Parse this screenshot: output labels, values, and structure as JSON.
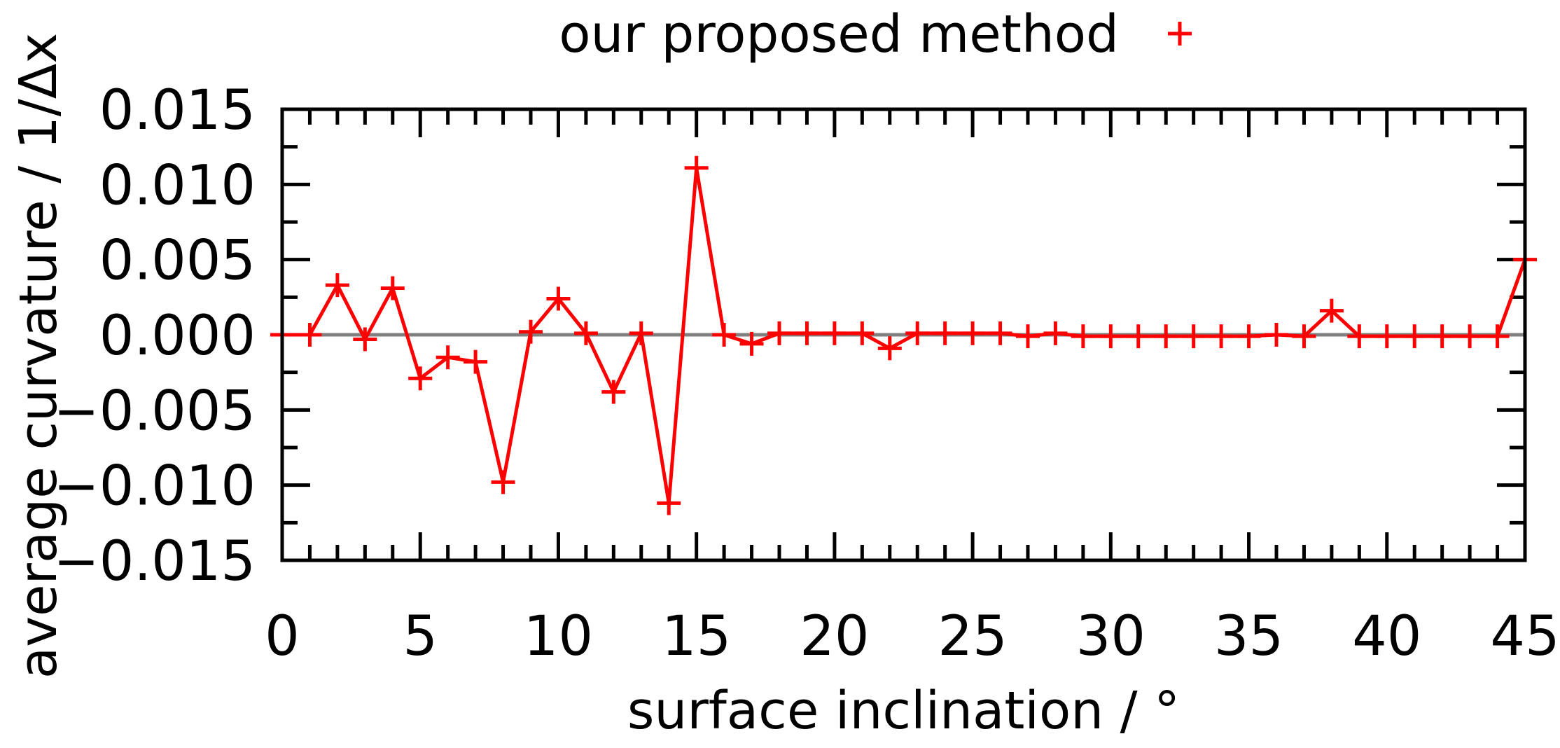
{
  "chart_data": {
    "type": "line",
    "title": "",
    "xlabel": "surface inclination / °",
    "ylabel": "average curvature / 1/Δx",
    "xlim": [
      0,
      45
    ],
    "ylim": [
      -0.015,
      0.015
    ],
    "x_ticks": [
      0,
      5,
      10,
      15,
      20,
      25,
      30,
      35,
      40,
      45
    ],
    "x_tick_labels": [
      "0",
      "5",
      "10",
      "15",
      "20",
      "25",
      "30",
      "35",
      "40",
      "45"
    ],
    "y_ticks": [
      -0.015,
      -0.01,
      -0.005,
      0.0,
      0.005,
      0.01,
      0.015
    ],
    "y_tick_labels": [
      "−0.015",
      "−0.010",
      "−0.005",
      "0.000",
      "0.005",
      "0.010",
      "0.015"
    ],
    "legend_position": "top-center",
    "zero_line": true,
    "series": [
      {
        "name": "our proposed method",
        "color": "#ff0000",
        "marker": "plus",
        "x": [
          0,
          1,
          2,
          3,
          4,
          5,
          6,
          7,
          8,
          9,
          10,
          11,
          12,
          13,
          14,
          15,
          16,
          17,
          18,
          19,
          20,
          21,
          22,
          23,
          24,
          25,
          26,
          27,
          28,
          29,
          30,
          31,
          32,
          33,
          34,
          35,
          36,
          37,
          38,
          39,
          40,
          41,
          42,
          43,
          44,
          45
        ],
        "values": [
          0.0,
          0.0,
          0.0033,
          -0.0003,
          0.0031,
          -0.0029,
          -0.0015,
          -0.0018,
          -0.0098,
          0.0002,
          0.0024,
          0.0001,
          -0.0038,
          0.0001,
          -0.0112,
          0.0111,
          0.0,
          -0.0006,
          0.0001,
          0.0001,
          0.0001,
          0.0001,
          -0.0009,
          0.0001,
          0.0001,
          0.0001,
          0.0001,
          -0.0001,
          0.0001,
          -0.0001,
          -0.0001,
          -0.0001,
          -0.0001,
          -0.0001,
          -0.0001,
          -0.0001,
          0.0,
          -0.0001,
          0.0016,
          -0.0001,
          -0.0001,
          -0.0001,
          -0.0001,
          -0.0001,
          -0.0001,
          0.005
        ]
      }
    ]
  }
}
